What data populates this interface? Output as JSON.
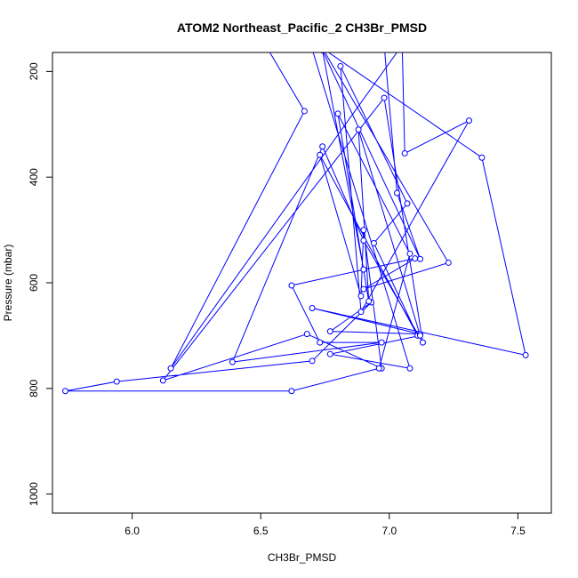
{
  "chart_data": {
    "type": "line",
    "title": "ATOM2 Northeast_Pacific_2 CH3Br_PMSD",
    "xlabel": "CH3Br_PMSD",
    "ylabel": "Pressure (mbar)",
    "xlim": [
      5.69,
      7.63
    ],
    "ylim": [
      1036,
      164
    ],
    "y_reversed": true,
    "x_ticks": [
      "6.0",
      "6.5",
      "7.0",
      "7.5"
    ],
    "x_tick_values": [
      6.0,
      6.5,
      7.0,
      7.5
    ],
    "y_ticks": [
      "200",
      "400",
      "600",
      "800",
      "1000"
    ],
    "y_tick_values": [
      200,
      400,
      600,
      800,
      1000
    ],
    "grid": false,
    "legend": "none",
    "marker": "open-circle",
    "line_color": "#0000ff",
    "series": [
      {
        "x": [
          6.47,
          6.67,
          6.15,
          7.05,
          7.06,
          7.31,
          6.89,
          6.81,
          7.07,
          6.94,
          7.11,
          6.73,
          6.89,
          6.9,
          6.97,
          6.68,
          6.12,
          6.98,
          7.13,
          6.9,
          6.74,
          6.39,
          6.97,
          6.73,
          6.62,
          7.1,
          6.9,
          7.23,
          6.74,
          7.36,
          7.53,
          6.7,
          7.12,
          6.77,
          6.93,
          6.7,
          5.94,
          5.74,
          6.62,
          6.96,
          7.08,
          6.8,
          6.92,
          6.88,
          7.12,
          6.77,
          7.08,
          6.7,
          6.88,
          6.7,
          6.82,
          6.98,
          7.03,
          7.12,
          6.74,
          6.9
        ],
        "y": [
          110,
          275,
          762,
          150,
          355,
          293,
          655,
          190,
          450,
          525,
          700,
          358,
          625,
          500,
          762,
          697,
          785,
          250,
          713,
          520,
          342,
          750,
          713,
          713,
          605,
          554,
          612,
          562,
          156,
          363,
          737,
          648,
          697,
          692,
          637,
          748,
          787,
          805,
          805,
          762,
          545,
          280,
          635,
          310,
          700,
          735,
          762,
          158,
          105,
          150,
          155,
          150,
          430,
          555,
          160,
          575
        ]
      }
    ]
  }
}
